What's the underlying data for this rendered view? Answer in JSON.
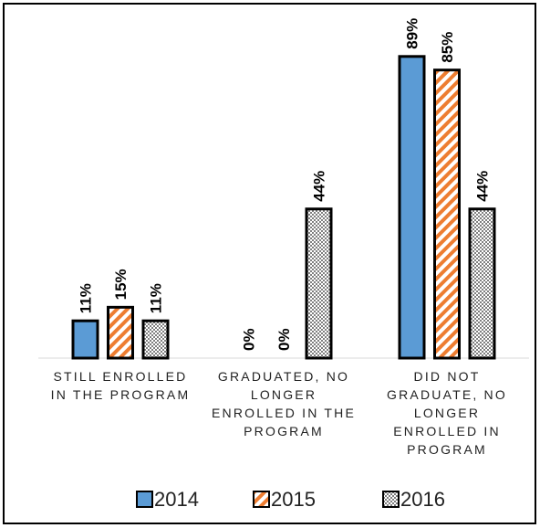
{
  "chart_data": {
    "type": "bar",
    "categories": [
      "STILL ENROLLED IN THE PROGRAM",
      "GRADUATED, NO LONGER ENROLLED IN THE PROGRAM",
      "DID NOT GRADUATE, NO LONGER ENROLLED IN PROGRAM"
    ],
    "series": [
      {
        "name": "2014",
        "color": "#5b9bd5",
        "pattern": "solid",
        "values": [
          11,
          0,
          89
        ],
        "value_labels": [
          "11%",
          "0%",
          "89%"
        ]
      },
      {
        "name": "2015",
        "color": "#ed7d31",
        "pattern": "stripes",
        "values": [
          15,
          0,
          85
        ],
        "value_labels": [
          "15%",
          "0%",
          "85%"
        ]
      },
      {
        "name": "2016",
        "color": "#7f7f7f",
        "pattern": "dots",
        "values": [
          11,
          44,
          44
        ],
        "value_labels": [
          "11%",
          "44%",
          "44%"
        ]
      }
    ],
    "ylim": [
      0,
      100
    ],
    "legend": "bottom"
  }
}
